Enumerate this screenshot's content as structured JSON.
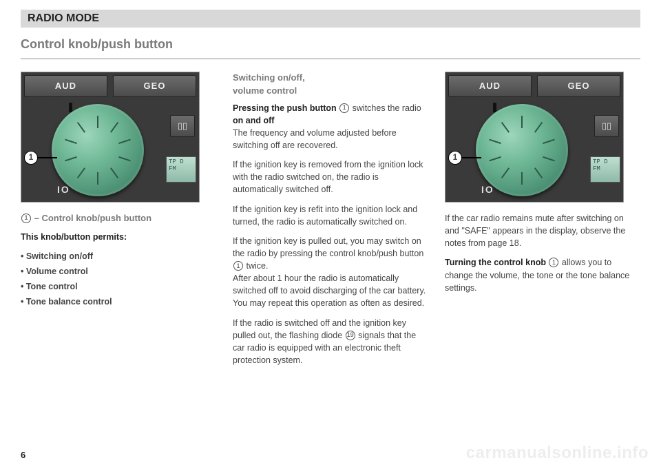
{
  "header": "RADIO MODE",
  "title": "Control knob/push button",
  "pageNumber": "6",
  "watermark": "carmanualsonline.info",
  "figure": {
    "btnLeft": "AUD",
    "btnRight": "GEO",
    "sideBtn": "▯▯",
    "lcdLine1": "TP D",
    "lcdLine2": "FM",
    "ioLabel": "IO",
    "callout": "1"
  },
  "col1": {
    "caption_pre": "①",
    "caption": " – Control knob/push button",
    "permits": "This knob/button permits:",
    "b1": "• Switching on/off",
    "b2": "• Volume control",
    "b3": "• Tone control",
    "b4": "• Tone balance control"
  },
  "col2": {
    "h1": "Switching on/off,",
    "h2": "volume control",
    "p1a": "Pressing the push button ",
    "p1b": " switches the radio ",
    "p1c": "on and off",
    "p2": "The frequency and volume adjusted before switching off are recovered.",
    "p3": "If the ignition key is removed from the ignition lock with the radio switched on, the radio is automatically switched off.",
    "p4": "If the ignition key is refit into the ignition lock and turned, the radio is automatically switched on.",
    "p5a": "If the ignition key is pulled out, you may switch on the radio by pressing the control knob/push button ",
    "p5b": " twice.",
    "p6": "After about 1 hour the radio is automatically switched off to avoid discharging of the car battery.",
    "p7": "You may repeat this operation as often as desired.",
    "p8a": "If the radio is switched off and the ignition key pulled out, the flashing diode ",
    "p8b": " signals that the car radio is equipped with an electronic theft protection system.",
    "ref1": "1",
    "ref5": "1",
    "ref8": "19"
  },
  "col3": {
    "p1": "If the car radio remains mute after switching on and \"SAFE\" appears in the display, observe the notes from page 18.",
    "p2a": "Turning the control knob ",
    "p2b": " allows you to change the volume, the tone or the tone balance settings.",
    "ref": "1"
  }
}
